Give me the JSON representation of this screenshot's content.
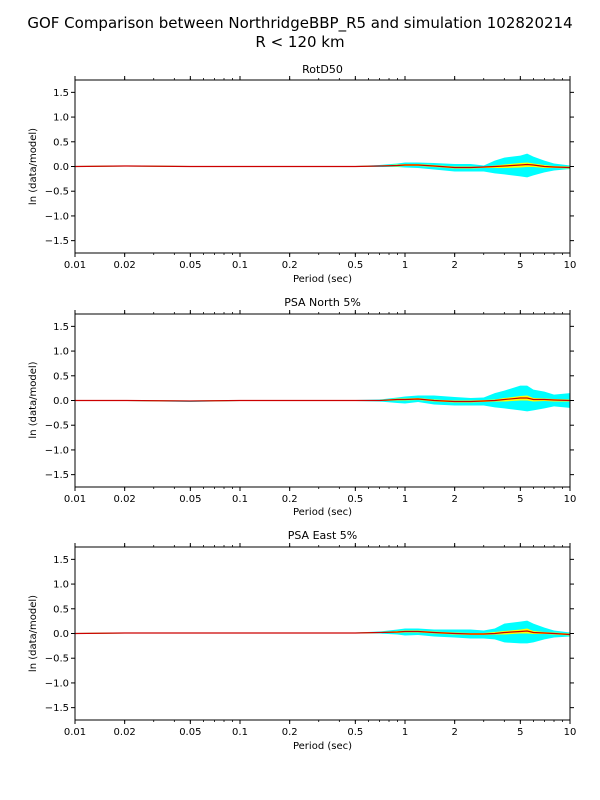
{
  "figure": {
    "title_line1": "GOF Comparison between NorthridgeBBP_R5 and simulation 102820214",
    "title_line2": "R < 120 km"
  },
  "colors": {
    "band": "#00ffff",
    "inner_band": "#ffff00",
    "mean_line": "#cc0000",
    "axes": "#000000"
  },
  "chart_data": [
    {
      "type": "area",
      "title": "RotD50",
      "xlabel": "Period (sec)",
      "ylabel": "ln (data/model)",
      "xscale": "log",
      "xlim": [
        0.01,
        10
      ],
      "ylim": [
        -1.75,
        1.75
      ],
      "xticks": [
        0.01,
        0.02,
        0.05,
        0.1,
        0.2,
        0.5,
        1,
        2,
        5,
        10
      ],
      "xtick_labels": [
        "0.01",
        "0.02",
        "0.05",
        "0.1",
        "0.2",
        "0.5",
        "1",
        "2",
        "5",
        "10"
      ],
      "yticks": [
        -1.5,
        -1.0,
        -0.5,
        0.0,
        0.5,
        1.0,
        1.5
      ],
      "ytick_labels": [
        "−1.5",
        "−1.0",
        "−0.5",
        "0.0",
        "0.5",
        "1.0",
        "1.5"
      ],
      "x": [
        0.01,
        0.02,
        0.05,
        0.1,
        0.2,
        0.5,
        0.7,
        0.9,
        1.0,
        1.2,
        1.5,
        2.0,
        2.5,
        3.0,
        3.5,
        4.0,
        5.0,
        5.5,
        6.0,
        7.0,
        8.0,
        10.0
      ],
      "mean": [
        0.0,
        0.01,
        0.0,
        0.0,
        0.0,
        0.0,
        0.01,
        0.02,
        0.03,
        0.03,
        0.01,
        -0.02,
        -0.02,
        -0.01,
        0.0,
        0.01,
        0.03,
        0.04,
        0.03,
        0.0,
        -0.01,
        -0.02
      ],
      "inner_upper": [
        0.01,
        0.02,
        0.01,
        0.01,
        0.01,
        0.01,
        0.02,
        0.04,
        0.05,
        0.05,
        0.03,
        0.0,
        0.0,
        0.0,
        0.02,
        0.04,
        0.07,
        0.08,
        0.06,
        0.03,
        0.01,
        0.0
      ],
      "inner_lower": [
        -0.01,
        0.0,
        -0.01,
        -0.01,
        -0.01,
        -0.01,
        0.0,
        0.0,
        0.01,
        0.01,
        -0.01,
        -0.04,
        -0.04,
        -0.03,
        -0.03,
        -0.03,
        -0.02,
        -0.01,
        -0.01,
        -0.03,
        -0.03,
        -0.04
      ],
      "upper": [
        0.01,
        0.02,
        0.01,
        0.01,
        0.01,
        0.01,
        0.03,
        0.06,
        0.08,
        0.08,
        0.07,
        0.05,
        0.05,
        0.02,
        0.12,
        0.18,
        0.22,
        0.26,
        0.2,
        0.12,
        0.06,
        0.02
      ],
      "lower": [
        -0.01,
        0.0,
        -0.01,
        -0.01,
        -0.01,
        -0.01,
        -0.01,
        -0.01,
        -0.02,
        -0.03,
        -0.06,
        -0.1,
        -0.1,
        -0.1,
        -0.14,
        -0.16,
        -0.2,
        -0.22,
        -0.18,
        -0.12,
        -0.08,
        -0.05
      ]
    },
    {
      "type": "area",
      "title": "PSA North 5%",
      "xlabel": "Period (sec)",
      "ylabel": "ln (data/model)",
      "xscale": "log",
      "xlim": [
        0.01,
        10
      ],
      "ylim": [
        -1.75,
        1.75
      ],
      "xticks": [
        0.01,
        0.02,
        0.05,
        0.1,
        0.2,
        0.5,
        1,
        2,
        5,
        10
      ],
      "xtick_labels": [
        "0.01",
        "0.02",
        "0.05",
        "0.1",
        "0.2",
        "0.5",
        "1",
        "2",
        "5",
        "10"
      ],
      "yticks": [
        -1.5,
        -1.0,
        -0.5,
        0.0,
        0.5,
        1.0,
        1.5
      ],
      "ytick_labels": [
        "−1.5",
        "−1.0",
        "−0.5",
        "0.0",
        "0.5",
        "1.0",
        "1.5"
      ],
      "x": [
        0.01,
        0.02,
        0.05,
        0.1,
        0.2,
        0.5,
        0.7,
        0.9,
        1.0,
        1.2,
        1.5,
        2.0,
        2.5,
        3.0,
        3.5,
        4.0,
        5.0,
        5.5,
        6.0,
        7.0,
        8.0,
        10.0
      ],
      "mean": [
        0.0,
        0.0,
        -0.01,
        0.0,
        0.0,
        0.0,
        0.0,
        0.02,
        0.02,
        0.03,
        0.0,
        -0.02,
        -0.02,
        -0.01,
        0.0,
        0.02,
        0.05,
        0.05,
        0.02,
        0.02,
        0.01,
        0.0
      ],
      "inner_upper": [
        0.01,
        0.01,
        0.0,
        0.01,
        0.01,
        0.01,
        0.01,
        0.04,
        0.04,
        0.05,
        0.02,
        0.0,
        0.0,
        0.01,
        0.02,
        0.05,
        0.09,
        0.1,
        0.05,
        0.04,
        0.03,
        0.02
      ],
      "inner_lower": [
        -0.01,
        -0.01,
        -0.02,
        -0.01,
        -0.01,
        -0.01,
        -0.01,
        0.0,
        0.0,
        0.01,
        -0.02,
        -0.04,
        -0.04,
        -0.03,
        -0.02,
        -0.02,
        0.0,
        0.0,
        -0.02,
        -0.01,
        -0.02,
        -0.02
      ],
      "upper": [
        0.01,
        0.01,
        0.0,
        0.01,
        0.01,
        0.01,
        0.02,
        0.06,
        0.08,
        0.1,
        0.1,
        0.07,
        0.05,
        0.06,
        0.15,
        0.2,
        0.3,
        0.3,
        0.22,
        0.18,
        0.12,
        0.15
      ],
      "lower": [
        -0.01,
        -0.01,
        -0.03,
        -0.01,
        -0.01,
        -0.01,
        -0.02,
        -0.05,
        -0.06,
        -0.03,
        -0.08,
        -0.1,
        -0.1,
        -0.1,
        -0.14,
        -0.16,
        -0.2,
        -0.22,
        -0.2,
        -0.16,
        -0.12,
        -0.15
      ]
    },
    {
      "type": "area",
      "title": "PSA East 5%",
      "xlabel": "Period (sec)",
      "ylabel": "ln (data/model)",
      "xscale": "log",
      "xlim": [
        0.01,
        10
      ],
      "ylim": [
        -1.75,
        1.75
      ],
      "xticks": [
        0.01,
        0.02,
        0.05,
        0.1,
        0.2,
        0.5,
        1,
        2,
        5,
        10
      ],
      "xtick_labels": [
        "0.01",
        "0.02",
        "0.05",
        "0.1",
        "0.2",
        "0.5",
        "1",
        "2",
        "5",
        "10"
      ],
      "yticks": [
        -1.5,
        -1.0,
        -0.5,
        0.0,
        0.5,
        1.0,
        1.5
      ],
      "ytick_labels": [
        "−1.5",
        "−1.0",
        "−0.5",
        "0.0",
        "0.5",
        "1.0",
        "1.5"
      ],
      "x": [
        0.01,
        0.02,
        0.05,
        0.1,
        0.2,
        0.5,
        0.7,
        0.9,
        1.0,
        1.2,
        1.5,
        2.0,
        2.5,
        3.0,
        3.5,
        4.0,
        5.0,
        5.5,
        6.0,
        7.0,
        8.0,
        10.0
      ],
      "mean": [
        0.0,
        0.01,
        0.01,
        0.01,
        0.01,
        0.01,
        0.02,
        0.03,
        0.04,
        0.04,
        0.02,
        0.0,
        -0.01,
        -0.01,
        0.0,
        0.02,
        0.04,
        0.05,
        0.02,
        0.01,
        0.0,
        -0.02
      ],
      "inner_upper": [
        0.01,
        0.02,
        0.02,
        0.02,
        0.02,
        0.02,
        0.03,
        0.05,
        0.06,
        0.06,
        0.04,
        0.02,
        0.01,
        0.01,
        0.03,
        0.05,
        0.08,
        0.1,
        0.05,
        0.03,
        0.02,
        0.0
      ],
      "inner_lower": [
        -0.01,
        0.0,
        0.0,
        0.0,
        0.0,
        0.0,
        0.01,
        0.01,
        0.02,
        0.02,
        0.0,
        -0.02,
        -0.03,
        -0.03,
        -0.02,
        -0.02,
        0.0,
        0.0,
        -0.01,
        -0.01,
        -0.02,
        -0.04
      ],
      "upper": [
        0.01,
        0.02,
        0.02,
        0.02,
        0.02,
        0.02,
        0.04,
        0.08,
        0.1,
        0.1,
        0.08,
        0.08,
        0.08,
        0.06,
        0.1,
        0.2,
        0.24,
        0.26,
        0.2,
        0.12,
        0.06,
        0.02
      ],
      "lower": [
        -0.01,
        0.0,
        0.0,
        0.0,
        0.0,
        0.0,
        0.0,
        -0.02,
        -0.04,
        -0.03,
        -0.06,
        -0.08,
        -0.1,
        -0.1,
        -0.12,
        -0.18,
        -0.2,
        -0.2,
        -0.18,
        -0.12,
        -0.08,
        -0.06
      ]
    }
  ]
}
